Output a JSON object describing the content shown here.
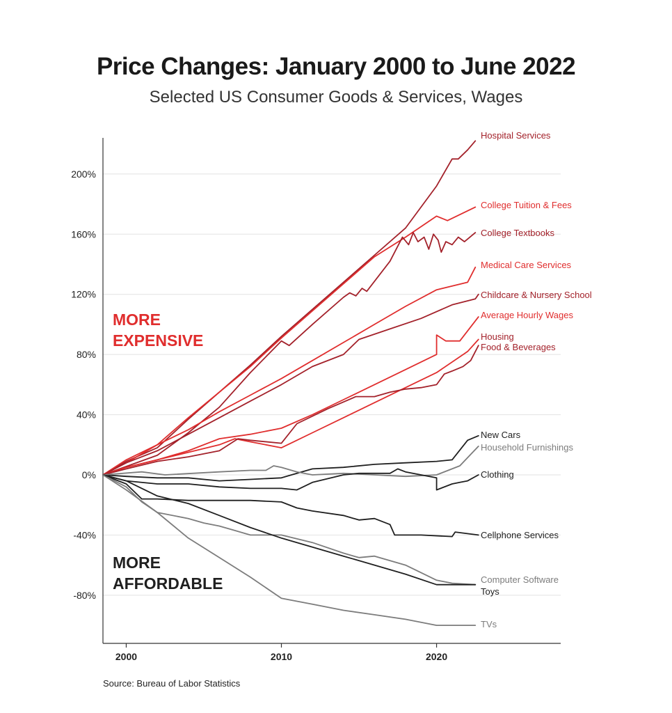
{
  "title": "Price Changes: January 2000 to June 2022",
  "subtitle": "Selected US Consumer Goods & Services, Wages",
  "source": "Source: Bureau of Labor Statistics",
  "annotations": {
    "more_expensive": [
      "MORE",
      "EXPENSIVE"
    ],
    "more_affordable": [
      "MORE",
      "AFFORDABLE"
    ]
  },
  "colors": {
    "dark_red": "#a3212a",
    "red": "#e02d2d",
    "black": "#1f1f1f",
    "gray": "#7c7c7c"
  },
  "chart_data": {
    "type": "line",
    "title": "Price Changes: January 2000 to June 2022",
    "xlabel": "",
    "ylabel": "",
    "xlim": [
      1998.5,
      2028
    ],
    "ylim": [
      -112,
      224
    ],
    "x_ticks": [
      2000,
      2010,
      2020
    ],
    "y_ticks": [
      200,
      160,
      120,
      80,
      40,
      0,
      -40,
      -80
    ],
    "y_tick_labels": [
      "200%",
      "160%",
      "120%",
      "80%",
      "40%",
      "0%",
      "-40%",
      "-80%"
    ],
    "grid": "horizontal",
    "series": [
      {
        "name": "Hospital Services",
        "color": "#a3212a",
        "points": [
          [
            1998.5,
            0
          ],
          [
            2000,
            9
          ],
          [
            2002,
            18
          ],
          [
            2004,
            37
          ],
          [
            2006,
            55
          ],
          [
            2008,
            73
          ],
          [
            2010,
            92
          ],
          [
            2012,
            110
          ],
          [
            2014,
            128
          ],
          [
            2016,
            146
          ],
          [
            2018,
            164
          ],
          [
            2020,
            192
          ],
          [
            2021,
            210
          ],
          [
            2021.4,
            210
          ],
          [
            2022,
            216
          ],
          [
            2022.5,
            222
          ]
        ]
      },
      {
        "name": "College Tuition & Fees",
        "color": "#e02d2d",
        "points": [
          [
            1998.5,
            0
          ],
          [
            2000,
            8
          ],
          [
            2002,
            20
          ],
          [
            2004,
            38
          ],
          [
            2006,
            55
          ],
          [
            2008,
            72
          ],
          [
            2010,
            91
          ],
          [
            2012,
            109
          ],
          [
            2014,
            127
          ],
          [
            2016,
            145
          ],
          [
            2018,
            158
          ],
          [
            2020,
            172
          ],
          [
            2020.7,
            169
          ],
          [
            2022.5,
            178
          ]
        ]
      },
      {
        "name": "College Textbooks",
        "color": "#a3212a",
        "points": [
          [
            1998.5,
            0
          ],
          [
            2002,
            13
          ],
          [
            2004,
            28
          ],
          [
            2006,
            45
          ],
          [
            2008,
            68
          ],
          [
            2010,
            89
          ],
          [
            2010.5,
            86
          ],
          [
            2012,
            100
          ],
          [
            2014,
            118
          ],
          [
            2014.4,
            121
          ],
          [
            2014.8,
            119
          ],
          [
            2015.2,
            124
          ],
          [
            2015.5,
            122
          ],
          [
            2017,
            142
          ],
          [
            2017.8,
            158
          ],
          [
            2018.2,
            153
          ],
          [
            2018.5,
            161
          ],
          [
            2018.8,
            155
          ],
          [
            2019.2,
            158
          ],
          [
            2019.5,
            150
          ],
          [
            2019.8,
            160
          ],
          [
            2020.1,
            156
          ],
          [
            2020.3,
            148
          ],
          [
            2020.6,
            155
          ],
          [
            2021,
            153
          ],
          [
            2021.4,
            158
          ],
          [
            2021.8,
            155
          ],
          [
            2022.5,
            161
          ]
        ]
      },
      {
        "name": "Medical Care Services",
        "color": "#e02d2d",
        "points": [
          [
            1998.5,
            0
          ],
          [
            2000,
            10
          ],
          [
            2002,
            20
          ],
          [
            2004,
            30
          ],
          [
            2006,
            42
          ],
          [
            2008,
            53
          ],
          [
            2010,
            64
          ],
          [
            2012,
            76
          ],
          [
            2014,
            88
          ],
          [
            2016,
            100
          ],
          [
            2018,
            112
          ],
          [
            2020,
            123
          ],
          [
            2022,
            128
          ],
          [
            2022.5,
            138
          ]
        ]
      },
      {
        "name": "Childcare & Nursery School",
        "color": "#a3212a",
        "points": [
          [
            1998.5,
            0
          ],
          [
            2000,
            8
          ],
          [
            2002,
            16
          ],
          [
            2004,
            27
          ],
          [
            2006,
            38
          ],
          [
            2008,
            49
          ],
          [
            2010,
            60
          ],
          [
            2012,
            72
          ],
          [
            2014,
            80
          ],
          [
            2015,
            90
          ],
          [
            2017,
            97
          ],
          [
            2019,
            104
          ],
          [
            2021,
            113
          ],
          [
            2022.5,
            117
          ],
          [
            2022.7,
            120
          ]
        ]
      },
      {
        "name": "Average Hourly Wages",
        "color": "#e02d2d",
        "points": [
          [
            1998.5,
            0
          ],
          [
            2000,
            5
          ],
          [
            2002,
            10
          ],
          [
            2004,
            16
          ],
          [
            2006,
            24
          ],
          [
            2008,
            27
          ],
          [
            2010,
            31
          ],
          [
            2012,
            40
          ],
          [
            2014,
            50
          ],
          [
            2016,
            60
          ],
          [
            2018,
            70
          ],
          [
            2020,
            80
          ],
          [
            2020,
            93
          ],
          [
            2020.6,
            89
          ],
          [
            2021,
            89
          ],
          [
            2021.5,
            89
          ],
          [
            2022.7,
            105
          ]
        ]
      },
      {
        "name": "Housing",
        "color": "#e02d2d",
        "points": [
          [
            1998.5,
            0
          ],
          [
            2000,
            5
          ],
          [
            2002,
            10
          ],
          [
            2004,
            15
          ],
          [
            2006,
            20
          ],
          [
            2007,
            24
          ],
          [
            2008,
            22
          ],
          [
            2010,
            18
          ],
          [
            2012,
            28
          ],
          [
            2014,
            38
          ],
          [
            2016,
            48
          ],
          [
            2018,
            58
          ],
          [
            2020,
            68
          ],
          [
            2022,
            82
          ],
          [
            2022.7,
            90
          ]
        ]
      },
      {
        "name": "Food & Beverages",
        "color": "#a3212a",
        "points": [
          [
            1998.5,
            0
          ],
          [
            2000,
            4
          ],
          [
            2002,
            9
          ],
          [
            2004,
            12
          ],
          [
            2006,
            16
          ],
          [
            2007.2,
            24
          ],
          [
            2008,
            23
          ],
          [
            2010,
            21
          ],
          [
            2011,
            34
          ],
          [
            2013,
            44
          ],
          [
            2014.8,
            52
          ],
          [
            2016,
            52
          ],
          [
            2017,
            55
          ],
          [
            2018,
            57
          ],
          [
            2019,
            58
          ],
          [
            2020,
            60
          ],
          [
            2020.5,
            67
          ],
          [
            2021,
            69
          ],
          [
            2021.7,
            72
          ],
          [
            2022.2,
            76
          ],
          [
            2022.7,
            86
          ]
        ]
      },
      {
        "name": "New Cars",
        "color": "#1f1f1f",
        "points": [
          [
            1998.5,
            0
          ],
          [
            2000,
            -1
          ],
          [
            2002,
            -2
          ],
          [
            2004,
            -2
          ],
          [
            2006,
            -4
          ],
          [
            2008,
            -3
          ],
          [
            2010,
            -2
          ],
          [
            2011,
            1
          ],
          [
            2012,
            4
          ],
          [
            2014,
            5
          ],
          [
            2016,
            7
          ],
          [
            2018,
            8
          ],
          [
            2020,
            9
          ],
          [
            2021,
            10
          ],
          [
            2022,
            23
          ],
          [
            2022.7,
            26
          ]
        ]
      },
      {
        "name": "Household Furnishings",
        "color": "#7c7c7c",
        "points": [
          [
            1998.5,
            0
          ],
          [
            2001,
            2
          ],
          [
            2002.5,
            0
          ],
          [
            2006,
            2
          ],
          [
            2008,
            3
          ],
          [
            2009,
            3
          ],
          [
            2009.5,
            6
          ],
          [
            2010,
            5
          ],
          [
            2011,
            2
          ],
          [
            2012,
            0
          ],
          [
            2014,
            1
          ],
          [
            2016,
            0
          ],
          [
            2018,
            -1
          ],
          [
            2020,
            0
          ],
          [
            2021.5,
            6
          ],
          [
            2022.7,
            19
          ]
        ]
      },
      {
        "name": "Clothing",
        "color": "#1f1f1f",
        "points": [
          [
            1998.5,
            0
          ],
          [
            2000,
            -4
          ],
          [
            2002,
            -6
          ],
          [
            2004,
            -6
          ],
          [
            2006,
            -8
          ],
          [
            2008,
            -9
          ],
          [
            2010,
            -9
          ],
          [
            2011,
            -10
          ],
          [
            2012,
            -5
          ],
          [
            2014,
            0
          ],
          [
            2015,
            1
          ],
          [
            2017,
            1
          ],
          [
            2017.5,
            4
          ],
          [
            2018,
            2
          ],
          [
            2020,
            -2
          ],
          [
            2020,
            -10
          ],
          [
            2021,
            -6
          ],
          [
            2021.5,
            -5
          ],
          [
            2022,
            -4
          ],
          [
            2022.7,
            0
          ]
        ]
      },
      {
        "name": "Cellphone Services",
        "color": "#1f1f1f",
        "points": [
          [
            1998.5,
            0
          ],
          [
            2000,
            -6
          ],
          [
            2001,
            -16
          ],
          [
            2002,
            -16
          ],
          [
            2004,
            -17
          ],
          [
            2006,
            -17
          ],
          [
            2008,
            -17
          ],
          [
            2010,
            -18
          ],
          [
            2011,
            -22
          ],
          [
            2012,
            -24
          ],
          [
            2014,
            -27
          ],
          [
            2015,
            -30
          ],
          [
            2016,
            -29
          ],
          [
            2017,
            -33
          ],
          [
            2017.3,
            -40
          ],
          [
            2019,
            -40
          ],
          [
            2021,
            -41
          ],
          [
            2021.2,
            -38
          ],
          [
            2022.7,
            -40
          ]
        ]
      },
      {
        "name": "Computer Software",
        "color": "#7c7c7c",
        "points": [
          [
            1998.5,
            0
          ],
          [
            2000,
            -8
          ],
          [
            2001,
            -18
          ],
          [
            2002,
            -25
          ],
          [
            2004,
            -29
          ],
          [
            2005,
            -32
          ],
          [
            2006,
            -34
          ],
          [
            2007,
            -37
          ],
          [
            2008,
            -40
          ],
          [
            2010,
            -40
          ],
          [
            2012,
            -45
          ],
          [
            2014,
            -52
          ],
          [
            2015,
            -55
          ],
          [
            2016,
            -54
          ],
          [
            2018,
            -60
          ],
          [
            2020,
            -70
          ],
          [
            2021,
            -72
          ],
          [
            2022.5,
            -73
          ]
        ]
      },
      {
        "name": "Toys",
        "color": "#1f1f1f",
        "points": [
          [
            1998.5,
            0
          ],
          [
            2000,
            -4
          ],
          [
            2002,
            -14
          ],
          [
            2004,
            -19
          ],
          [
            2006,
            -27
          ],
          [
            2008,
            -35
          ],
          [
            2010,
            -42
          ],
          [
            2012,
            -48
          ],
          [
            2014,
            -54
          ],
          [
            2016,
            -60
          ],
          [
            2018,
            -66
          ],
          [
            2020,
            -73
          ],
          [
            2022.5,
            -73
          ]
        ]
      },
      {
        "name": "TVs",
        "color": "#7c7c7c",
        "points": [
          [
            1998.5,
            0
          ],
          [
            2000,
            -10
          ],
          [
            2002,
            -25
          ],
          [
            2004,
            -42
          ],
          [
            2006,
            -55
          ],
          [
            2008,
            -68
          ],
          [
            2010,
            -82
          ],
          [
            2012,
            -86
          ],
          [
            2014,
            -90
          ],
          [
            2016,
            -93
          ],
          [
            2018,
            -96
          ],
          [
            2020,
            -100
          ],
          [
            2022.5,
            -100
          ]
        ]
      }
    ],
    "series_labels": [
      {
        "name": "Hospital Services",
        "lines": [
          "Hospital Services"
        ],
        "color": "#a3212a"
      },
      {
        "name": "College Tuition & Fees",
        "lines": [
          "College Tuition & Fees"
        ],
        "color": "#e02d2d"
      },
      {
        "name": "College Textbooks",
        "lines": [
          "College Textbooks"
        ],
        "color": "#a3212a"
      },
      {
        "name": "Medical Care Services",
        "lines": [
          "Medical Care Services"
        ],
        "color": "#e02d2d"
      },
      {
        "name": "Childcare & Nursery School",
        "lines": [
          "Childcare & Nursery School"
        ],
        "color": "#a3212a"
      },
      {
        "name": "Average Hourly Wages",
        "lines": [
          "Average Hourly Wages"
        ],
        "color": "#e02d2d"
      },
      {
        "name": "Housing / Food & Beverages",
        "lines": [
          "Housing",
          "Food & Beverages"
        ],
        "color": "#a3212a"
      },
      {
        "name": "New Cars",
        "lines": [
          "New Cars"
        ],
        "color": "#1f1f1f"
      },
      {
        "name": "Household Furnishings",
        "lines": [
          "Household Furnishings"
        ],
        "color": "#7c7c7c"
      },
      {
        "name": "Clothing",
        "lines": [
          "Clothing"
        ],
        "color": "#1f1f1f"
      },
      {
        "name": "Cellphone Services",
        "lines": [
          "Cellphone Services"
        ],
        "color": "#1f1f1f"
      },
      {
        "name": "Computer Software",
        "lines": [
          "Computer Software"
        ],
        "color": "#7c7c7c"
      },
      {
        "name": "Toys",
        "lines": [
          "Toys"
        ],
        "color": "#1f1f1f"
      },
      {
        "name": "TVs",
        "lines": [
          "TVs"
        ],
        "color": "#7c7c7c"
      }
    ]
  }
}
